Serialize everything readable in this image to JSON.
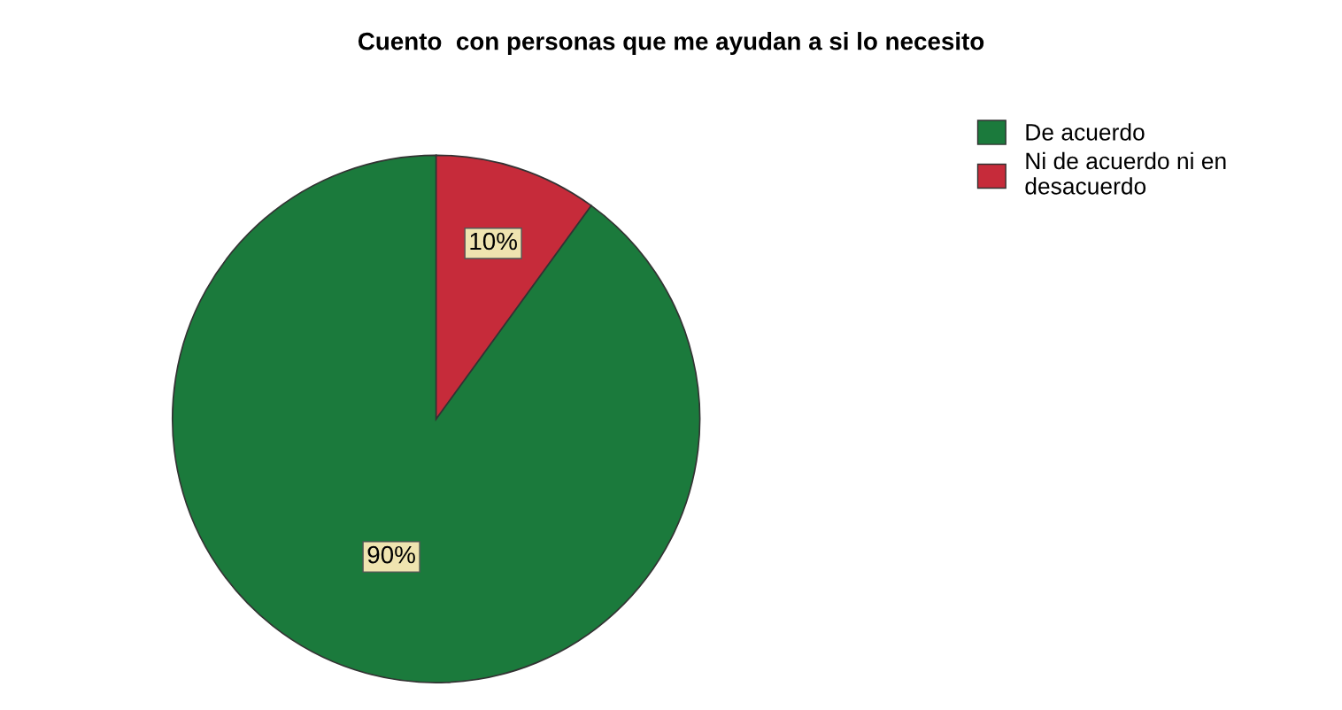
{
  "chart_data": {
    "type": "pie",
    "title": "Cuento  con personas que me ayudan a si lo necesito",
    "categories": [
      "De acuerdo",
      "Ni de acuerdo ni en\ndesacuerdo"
    ],
    "values": [
      90,
      10
    ],
    "colors": [
      "#1b7a3c",
      "#c62b3a"
    ],
    "value_labels": [
      "90%",
      "10%"
    ],
    "legend": "top right"
  }
}
